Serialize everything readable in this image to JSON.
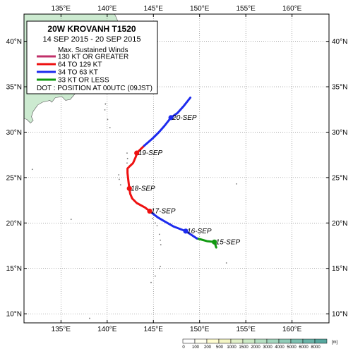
{
  "map": {
    "lon_range": [
      131,
      164
    ],
    "lat_range": [
      9,
      43
    ],
    "graticule_step": 5
  },
  "axes": {
    "lon_ticks": [
      {
        "value": 135,
        "label": "135°E"
      },
      {
        "value": 140,
        "label": "140°E"
      },
      {
        "value": 145,
        "label": "145°E"
      },
      {
        "value": 150,
        "label": "150°E"
      },
      {
        "value": 155,
        "label": "155°E"
      },
      {
        "value": 160,
        "label": "160°E"
      }
    ],
    "lat_ticks": [
      {
        "value": 40,
        "label": "40°N"
      },
      {
        "value": 35,
        "label": "35°N"
      },
      {
        "value": 30,
        "label": "30°N"
      },
      {
        "value": 25,
        "label": "25°N"
      },
      {
        "value": 20,
        "label": "20°N"
      },
      {
        "value": 15,
        "label": "15°N"
      },
      {
        "value": 10,
        "label": "10°N"
      }
    ]
  },
  "legend": {
    "title": "20W  KROVANH  T1520",
    "period": "14 SEP 2015 - 20 SEP 2015",
    "heading": "Max. Sustained Winds",
    "items": [
      {
        "label": "130 KT OR GREATER",
        "color": "#c0306a"
      },
      {
        "label": "64 TO 129 KT",
        "color": "#ee1111"
      },
      {
        "label": "34 TO 63 KT",
        "color": "#1d2bee"
      },
      {
        "label": "33 KT OR LESS",
        "color": "#119911"
      }
    ],
    "note": "DOT : POSITION AT 00UTC (09JST)"
  },
  "track": {
    "segments": [
      {
        "category": "33 KT OR LESS",
        "color": "#119911",
        "points": [
          [
            151.8,
            17.3
          ],
          [
            151.6,
            17.9
          ],
          [
            150.8,
            18.0
          ],
          [
            150.1,
            18.2
          ],
          [
            149.7,
            18.3
          ]
        ]
      },
      {
        "category": "34 TO 63 KT",
        "color": "#1d2bee",
        "points": [
          [
            149.7,
            18.3
          ],
          [
            148.5,
            19.1
          ],
          [
            147.2,
            19.6
          ],
          [
            146.0,
            20.3
          ],
          [
            145.5,
            20.6
          ],
          [
            145.1,
            20.9
          ],
          [
            144.6,
            21.3
          ]
        ]
      },
      {
        "category": "64 TO 129 KT",
        "color": "#ee1111",
        "points": [
          [
            144.6,
            21.3
          ],
          [
            144.1,
            21.7
          ],
          [
            143.2,
            22.2
          ],
          [
            142.7,
            22.7
          ],
          [
            142.5,
            23.2
          ],
          [
            142.4,
            23.8
          ],
          [
            142.3,
            24.6
          ],
          [
            142.2,
            25.5
          ],
          [
            142.2,
            26.0
          ],
          [
            142.5,
            26.3
          ],
          [
            142.8,
            26.6
          ],
          [
            143.1,
            27.3
          ],
          [
            143.2,
            27.7
          ],
          [
            143.6,
            28.1
          ],
          [
            144.0,
            28.5
          ]
        ]
      },
      {
        "category": "34 TO 63 KT",
        "color": "#1d2bee",
        "points": [
          [
            144.0,
            28.5
          ],
          [
            144.9,
            29.3
          ],
          [
            145.6,
            30.0
          ],
          [
            146.2,
            30.7
          ],
          [
            146.9,
            31.6
          ],
          [
            147.6,
            32.1
          ],
          [
            148.3,
            32.9
          ],
          [
            149.0,
            33.8
          ]
        ]
      }
    ],
    "daily_positions": [
      {
        "label": "15-SEP",
        "lon": 151.6,
        "lat": 17.9,
        "color": "#119911"
      },
      {
        "label": "16-SEP",
        "lon": 148.5,
        "lat": 19.1,
        "color": "#1d2bee"
      },
      {
        "label": "17-SEP",
        "lon": 144.6,
        "lat": 21.3,
        "color": "#ee1111"
      },
      {
        "label": "18-SEP",
        "lon": 142.4,
        "lat": 23.8,
        "color": "#ee1111"
      },
      {
        "label": "19-SEP",
        "lon": 143.2,
        "lat": 27.7,
        "color": "#ee1111"
      },
      {
        "label": "20-SEP",
        "lon": 146.9,
        "lat": 31.6,
        "color": "#1d2bee"
      }
    ]
  },
  "land": [
    {
      "name": "japan-land",
      "points": [
        [
          131.0,
          31.5
        ],
        [
          131.3,
          31.4
        ],
        [
          131.7,
          31.0
        ],
        [
          132.0,
          31.3
        ],
        [
          131.8,
          31.7
        ],
        [
          132.0,
          32.3
        ],
        [
          132.5,
          33.0
        ],
        [
          133.0,
          33.3
        ],
        [
          133.8,
          33.5
        ],
        [
          134.0,
          33.3
        ],
        [
          134.4,
          33.8
        ],
        [
          135.1,
          33.9
        ],
        [
          135.5,
          33.5
        ],
        [
          136.0,
          33.6
        ],
        [
          136.5,
          34.2
        ],
        [
          137.0,
          34.6
        ],
        [
          137.8,
          34.7
        ],
        [
          138.3,
          34.6
        ],
        [
          138.8,
          34.8
        ],
        [
          139.2,
          35.1
        ],
        [
          139.6,
          35.2
        ],
        [
          139.9,
          34.9
        ],
        [
          140.4,
          35.2
        ],
        [
          140.8,
          35.7
        ],
        [
          140.9,
          36.3
        ],
        [
          140.9,
          37.0
        ],
        [
          141.0,
          37.8
        ],
        [
          141.3,
          38.2
        ],
        [
          141.6,
          38.6
        ],
        [
          141.8,
          39.2
        ],
        [
          142.0,
          39.8
        ],
        [
          141.9,
          40.5
        ],
        [
          141.7,
          41.0
        ],
        [
          141.4,
          41.4
        ],
        [
          141.2,
          42.1
        ],
        [
          141.0,
          42.6
        ],
        [
          140.8,
          43.0
        ],
        [
          131.0,
          43.0
        ]
      ]
    },
    {
      "name": "izu-oshima-island",
      "points": [
        [
          139.35,
          34.7
        ],
        [
          139.45,
          34.75
        ],
        [
          139.42,
          34.65
        ]
      ]
    },
    {
      "name": "hachijo-island",
      "points": [
        [
          139.75,
          33.1
        ],
        [
          139.85,
          33.15
        ],
        [
          139.82,
          33.05
        ]
      ]
    }
  ],
  "islands": [
    {
      "name": "aogashima-island",
      "lon": 139.75,
      "lat": 32.45
    },
    {
      "name": "torishima-island",
      "lon": 140.3,
      "lat": 30.5
    },
    {
      "name": "sumisu-island",
      "lon": 140.05,
      "lat": 31.4
    },
    {
      "name": "ogasawara-mukojima-island",
      "lon": 142.15,
      "lat": 27.7
    },
    {
      "name": "chichijima-island",
      "lon": 142.2,
      "lat": 27.1
    },
    {
      "name": "hahajima-island",
      "lon": 142.15,
      "lat": 26.6
    },
    {
      "name": "iwo-jima-island",
      "lon": 141.3,
      "lat": 24.8
    },
    {
      "name": "kita-iwo-island",
      "lon": 141.25,
      "lat": 25.3
    },
    {
      "name": "minami-iwo-island",
      "lon": 141.45,
      "lat": 24.2
    },
    {
      "name": "okinotori-island",
      "lon": 136.1,
      "lat": 20.4
    },
    {
      "name": "minamitori-island",
      "lon": 154.0,
      "lat": 24.3
    },
    {
      "name": "farallon-de-pajaros-island",
      "lon": 144.9,
      "lat": 20.5
    },
    {
      "name": "maug-island",
      "lon": 145.2,
      "lat": 20.0
    },
    {
      "name": "asuncion-island",
      "lon": 145.4,
      "lat": 19.7
    },
    {
      "name": "agrihan-island",
      "lon": 145.65,
      "lat": 18.75
    },
    {
      "name": "pagan-island",
      "lon": 145.75,
      "lat": 18.1
    },
    {
      "name": "alamagan-island",
      "lon": 145.8,
      "lat": 17.6
    },
    {
      "name": "saipan-island",
      "lon": 145.75,
      "lat": 15.2
    },
    {
      "name": "tinian-island",
      "lon": 145.65,
      "lat": 15.0
    },
    {
      "name": "rota-island",
      "lon": 145.2,
      "lat": 14.15
    },
    {
      "name": "guam-island",
      "lon": 144.75,
      "lat": 13.45
    },
    {
      "name": "okinawa-region-island",
      "lon": 131.9,
      "lat": 25.9
    },
    {
      "name": "yap-area-island",
      "lon": 138.1,
      "lat": 9.5
    },
    {
      "name": "wake-area-island",
      "lon": 152.9,
      "lat": 15.6
    }
  ],
  "scale_bar": {
    "unit": "[m]",
    "stops": [
      {
        "label": "0",
        "color": "#ffffff"
      },
      {
        "label": "100",
        "color": "#fffff0"
      },
      {
        "label": "200",
        "color": "#fffdd0"
      },
      {
        "label": "500",
        "color": "#f4f6c4"
      },
      {
        "label": "1000",
        "color": "#e2f1c8"
      },
      {
        "label": "1500",
        "color": "#cdebc5"
      },
      {
        "label": "2000",
        "color": "#b6e0c2"
      },
      {
        "label": "3000",
        "color": "#a2d6bd"
      },
      {
        "label": "4000",
        "color": "#8fcbb7"
      },
      {
        "label": "5000",
        "color": "#7cc0b0"
      },
      {
        "label": "6000",
        "color": "#69b4a8"
      },
      {
        "label": "8000",
        "color": "#57a89f"
      }
    ]
  },
  "colors": {
    "frame": "#000000",
    "land": "#ccead0",
    "coast": "#555555",
    "grid": "#777777"
  }
}
